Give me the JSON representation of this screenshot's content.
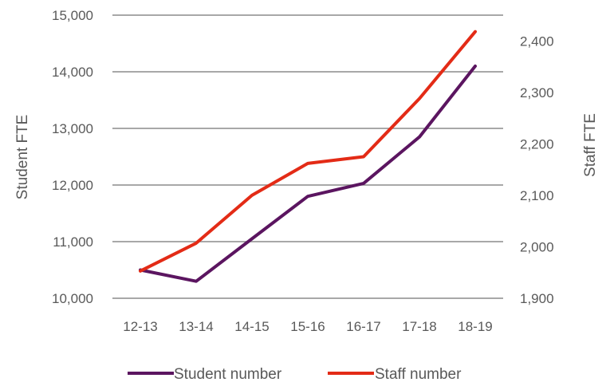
{
  "chart_data": {
    "type": "line",
    "categories": [
      "12-13",
      "13-14",
      "14-15",
      "15-16",
      "16-17",
      "17-18",
      "18-19"
    ],
    "y_left": {
      "label": "Student FTE",
      "range": [
        10000,
        15000
      ],
      "ticks": [
        "10,000",
        "11,000",
        "12,000",
        "13,000",
        "14,000",
        "15,000"
      ]
    },
    "y_right": {
      "label": "Staff FTE",
      "range": [
        1900,
        2450
      ],
      "ticks": [
        "1,900",
        "2,000",
        "2,100",
        "2,200",
        "2,300",
        "2,400"
      ]
    },
    "grid": true,
    "legend_position": "bottom",
    "series": [
      {
        "name": "Student number",
        "axis": "left",
        "color": "#5b1560",
        "values": [
          10500,
          10300,
          11050,
          11800,
          12030,
          12850,
          14100
        ]
      },
      {
        "name": "Staff number",
        "axis": "right",
        "color": "#e32b16",
        "values": [
          1953,
          2007,
          2100,
          2162,
          2175,
          2288,
          2418
        ]
      }
    ]
  }
}
